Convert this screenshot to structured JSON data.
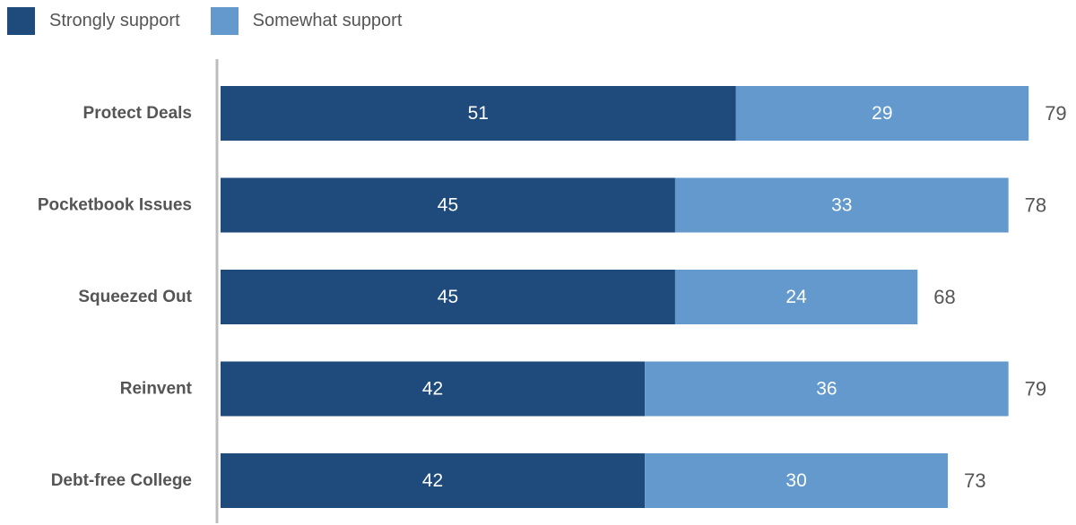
{
  "chart_data": {
    "type": "bar",
    "orientation": "horizontal",
    "stacked": true,
    "categories": [
      "Protect Deals",
      "Pocketbook Issues",
      "Squeezed Out",
      "Reinvent",
      "Debt-free College"
    ],
    "series": [
      {
        "name": "Strongly support",
        "color": "#1f4a7c",
        "values": [
          51,
          45,
          45,
          42,
          42
        ]
      },
      {
        "name": "Somewhat support",
        "color": "#6399cc",
        "values": [
          29,
          33,
          24,
          36,
          30
        ]
      }
    ],
    "totals": [
      79,
      78,
      68,
      79,
      73
    ],
    "legend_position": "top-left",
    "grid": false,
    "xlim": [
      0,
      84
    ]
  }
}
